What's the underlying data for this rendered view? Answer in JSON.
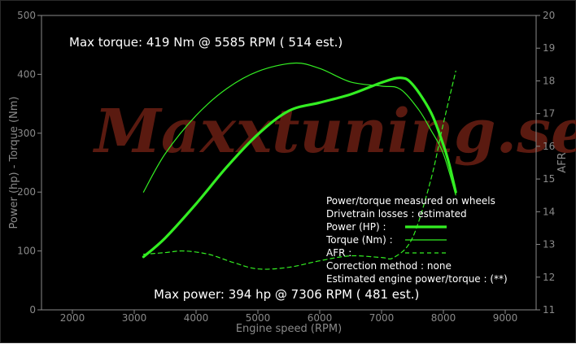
{
  "watermark": "Maxxtuning.se",
  "annotations": {
    "max_torque": "Max torque:  419 Nm @  5585 RPM ( 514 est.)",
    "max_power": "Max power:   394 hp @  7306 RPM ( 481 est.)"
  },
  "legend": {
    "heading1": "Power/torque measured on wheels",
    "heading2": "Drivetrain losses : estimated",
    "entries": [
      {
        "label": "Power (HP)    :",
        "style": "thick"
      },
      {
        "label": "Torque (Nm)  :",
        "style": "thin"
      },
      {
        "label": "AFR             :",
        "style": "dashed"
      }
    ],
    "footer1": "Correction method : none",
    "footer2": "Estimated engine power/torque : (**)"
  },
  "colors": {
    "background": "#000000",
    "line": "#33ee22",
    "axis": "#8a8a8a",
    "watermark": "#5a1a10"
  },
  "chart_data": {
    "type": "line",
    "xlabel": "Engine speed (RPM)",
    "ylabel": "Power (hp) - Torque (Nm)",
    "y2label": "AFR",
    "xlim": [
      1500,
      9500
    ],
    "ylim": [
      0,
      500
    ],
    "y2lim": [
      11,
      20
    ],
    "xticks": [
      2000,
      3000,
      4000,
      5000,
      6000,
      7000,
      8000,
      9000
    ],
    "yticks": [
      0,
      100,
      200,
      300,
      400,
      500
    ],
    "y2ticks": [
      11,
      12,
      13,
      14,
      15,
      16,
      17,
      18,
      19,
      20
    ],
    "series": [
      {
        "name": "Power (HP)",
        "axis": "left",
        "style": "thick",
        "x": [
          3150,
          3500,
          4000,
          4500,
          5000,
          5500,
          6000,
          6500,
          7000,
          7306,
          7500,
          7800,
          8000,
          8100,
          8200
        ],
        "y": [
          90,
          122,
          180,
          243,
          298,
          338,
          352,
          366,
          386,
          394,
          383,
          335,
          280,
          245,
          200
        ]
      },
      {
        "name": "Torque (Nm)",
        "axis": "left",
        "style": "thin",
        "x": [
          3150,
          3500,
          4000,
          4500,
          5000,
          5585,
          6000,
          6500,
          7000,
          7300,
          7600,
          7800,
          8000,
          8200
        ],
        "y": [
          200,
          265,
          330,
          376,
          405,
          419,
          410,
          387,
          380,
          375,
          340,
          305,
          265,
          195
        ]
      },
      {
        "name": "AFR",
        "axis": "right",
        "style": "dashed",
        "x": [
          3150,
          3500,
          3800,
          4200,
          4600,
          5000,
          5500,
          6000,
          6500,
          7000,
          7200,
          7500,
          7800,
          8000,
          8200
        ],
        "y": [
          12.7,
          12.75,
          12.8,
          12.7,
          12.45,
          12.25,
          12.3,
          12.5,
          12.65,
          12.6,
          12.6,
          13.2,
          15.0,
          16.7,
          18.3
        ]
      }
    ]
  }
}
